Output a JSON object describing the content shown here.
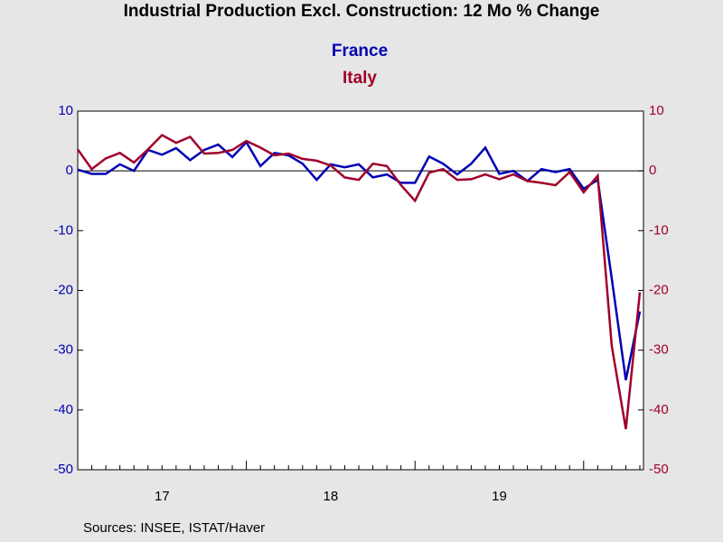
{
  "chart_data": {
    "type": "line",
    "title": "Industrial Production Excl. Construction: 12 Mo % Change",
    "source": "Sources:  INSEE, ISTAT/Haver",
    "categories": [
      null,
      null,
      null,
      null,
      null,
      null,
      "17",
      null,
      null,
      null,
      null,
      null,
      null,
      null,
      null,
      null,
      null,
      null,
      "18",
      null,
      null,
      null,
      null,
      null,
      null,
      null,
      null,
      null,
      null,
      null,
      "19",
      null,
      null,
      null,
      null,
      null,
      null,
      null,
      null,
      null,
      null
    ],
    "series": [
      {
        "name": "France",
        "color": "#0000b4",
        "values": [
          0.2,
          -0.5,
          -0.5,
          1.1,
          0.0,
          3.5,
          2.7,
          3.8,
          1.8,
          3.5,
          4.4,
          2.3,
          4.8,
          0.8,
          3.0,
          2.6,
          1.2,
          -1.5,
          1.1,
          0.6,
          1.1,
          -1.1,
          -0.6,
          -2.0,
          -2.0,
          2.4,
          1.2,
          -0.6,
          1.2,
          3.9,
          -0.5,
          0.0,
          -1.7,
          0.3,
          -0.2,
          0.3,
          -3.0,
          -1.5,
          -18.0,
          -35.0,
          -23.5
        ]
      },
      {
        "name": "Italy",
        "color": "#a0002a",
        "axis": "y2",
        "values": [
          3.6,
          0.3,
          2.1,
          3.0,
          1.4,
          3.6,
          6.0,
          4.7,
          5.7,
          2.9,
          3.0,
          3.5,
          5.0,
          3.9,
          2.6,
          2.9,
          2.0,
          1.7,
          0.9,
          -1.1,
          -1.5,
          1.2,
          0.8,
          -2.4,
          -5.0,
          -0.3,
          0.3,
          -1.5,
          -1.4,
          -0.6,
          -1.4,
          -0.6,
          -1.7,
          -2.0,
          -2.4,
          -0.2,
          -3.6,
          -0.8,
          -29.3,
          -43.2,
          -20.3
        ]
      }
    ],
    "ylim": [
      -50,
      10
    ],
    "yticks": [
      10,
      0,
      -10,
      -20,
      -30,
      -40,
      -50
    ],
    "y2lim": [
      -50,
      10
    ],
    "y2ticks": [
      10,
      0,
      -10,
      -20,
      -30,
      -40,
      -50
    ],
    "zero_line": true
  }
}
